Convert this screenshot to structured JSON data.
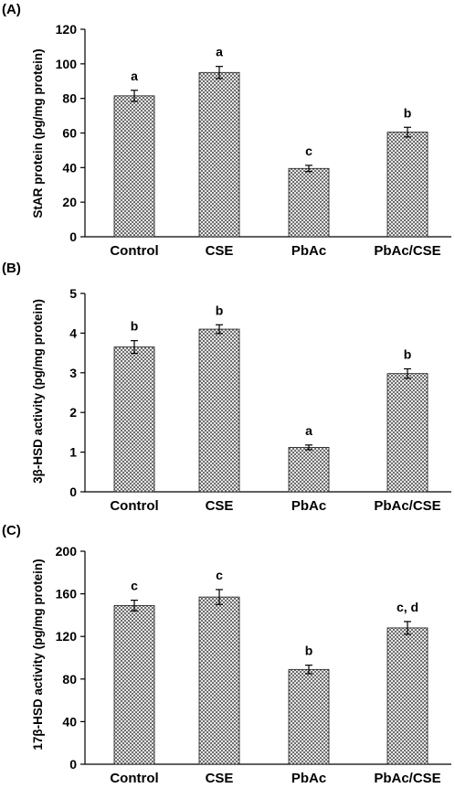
{
  "chart_data": [
    {
      "panel": "(A)",
      "type": "bar",
      "categories": [
        "Control",
        "CSE",
        "PbAc",
        "PbAc/CSE"
      ],
      "values": [
        81.5,
        95,
        39.5,
        60.5
      ],
      "errors": [
        3.2,
        3.5,
        1.8,
        2.8
      ],
      "significance": [
        "a",
        "a",
        "c",
        "b"
      ],
      "title": "",
      "xlabel": "",
      "ylabel": "StAR protein (pg/mg protein)",
      "ylim": [
        0,
        120
      ],
      "yticks": [
        0,
        20,
        40,
        60,
        80,
        100,
        120
      ],
      "legend": "none",
      "grid": false,
      "colors": {
        "bar_fill": "#7a7a7a",
        "bar_pattern_light": "#f2f2f2",
        "bar_outline": "#1a1a1a",
        "axis": "#000000"
      }
    },
    {
      "panel": "(B)",
      "type": "bar",
      "categories": [
        "Control",
        "CSE",
        "PbAc",
        "PbAc/CSE"
      ],
      "values": [
        3.65,
        4.1,
        1.12,
        2.98
      ],
      "errors": [
        0.16,
        0.11,
        0.06,
        0.12
      ],
      "significance": [
        "b",
        "b",
        "a",
        "b"
      ],
      "title": "",
      "xlabel": "",
      "ylabel": "3β-HSD activity (pg/mg protein)",
      "ylim": [
        0,
        5
      ],
      "yticks": [
        0,
        1,
        2,
        3,
        4,
        5
      ],
      "legend": "none",
      "grid": false,
      "colors": {
        "bar_fill": "#7a7a7a",
        "bar_pattern_light": "#f2f2f2",
        "bar_outline": "#1a1a1a",
        "axis": "#000000"
      }
    },
    {
      "panel": "(C)",
      "type": "bar",
      "categories": [
        "Control",
        "CSE",
        "PbAc",
        "PbAc/CSE"
      ],
      "values": [
        149,
        157,
        89,
        128
      ],
      "errors": [
        5,
        7,
        4,
        6
      ],
      "significance": [
        "c",
        "c",
        "b",
        "c, d"
      ],
      "title": "",
      "xlabel": "",
      "ylabel": "17β-HSD activity (pg/mg protein)",
      "ylim": [
        0,
        200
      ],
      "yticks": [
        0,
        40,
        80,
        120,
        160,
        200
      ],
      "legend": "none",
      "grid": false,
      "colors": {
        "bar_fill": "#7a7a7a",
        "bar_pattern_light": "#f2f2f2",
        "bar_outline": "#1a1a1a",
        "axis": "#000000"
      }
    }
  ]
}
